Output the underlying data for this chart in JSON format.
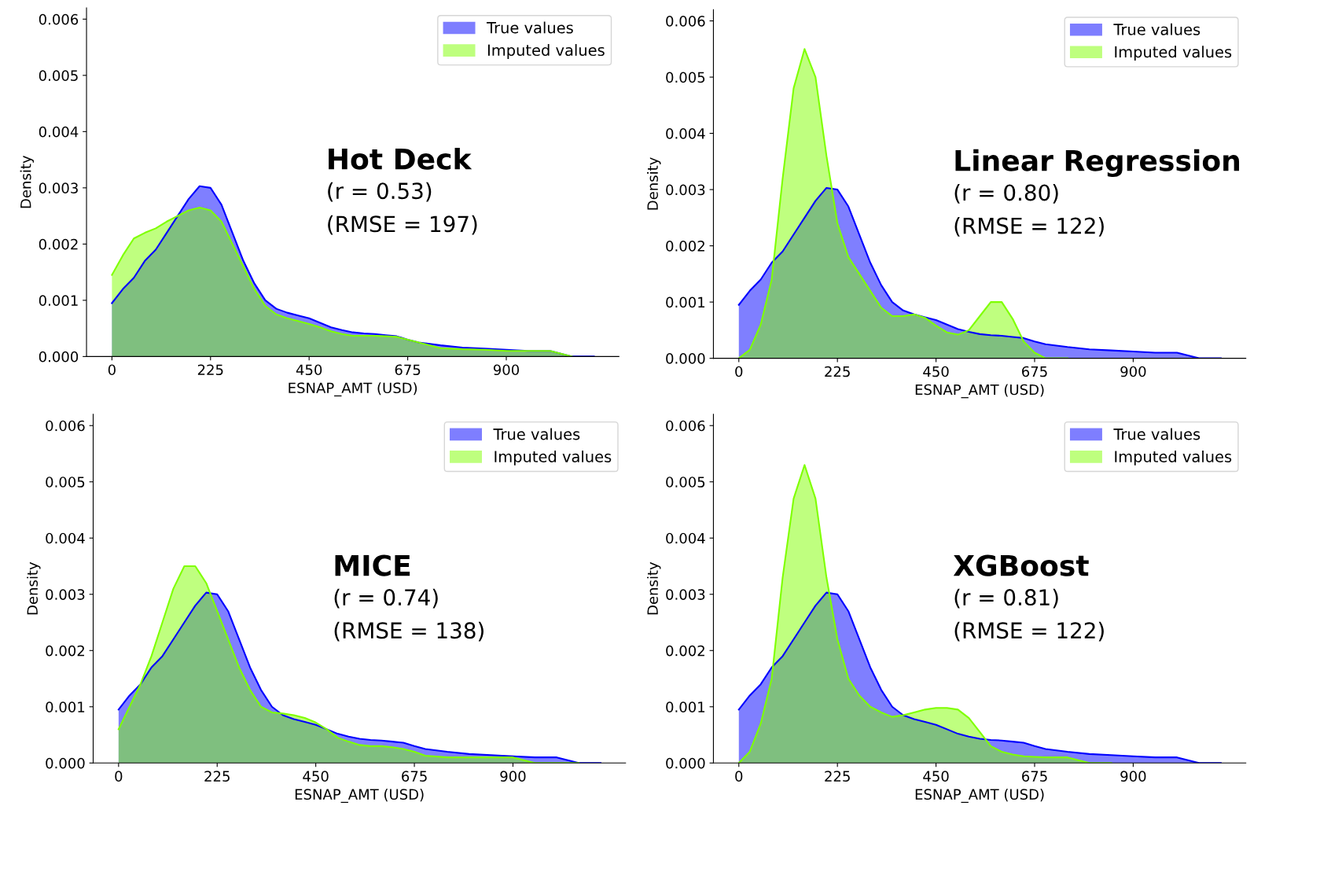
{
  "chart_data": [
    {
      "type": "area",
      "xlabel": "ESNAP_AMT (USD)",
      "ylabel": "Density",
      "annotations": [
        "Hot Deck",
        "(r = 0.53)",
        "(RMSE = 197)"
      ],
      "x": [
        0,
        25,
        50,
        75,
        100,
        125,
        150,
        175,
        200,
        225,
        250,
        275,
        300,
        325,
        350,
        375,
        400,
        425,
        450,
        475,
        500,
        525,
        550,
        575,
        600,
        625,
        650,
        675,
        700,
        750,
        800,
        850,
        900,
        950,
        1000,
        1050,
        1100
      ],
      "series": [
        {
          "name": "True values",
          "color": "#0000ff",
          "values": [
            0.00095,
            0.0012,
            0.0014,
            0.0017,
            0.0019,
            0.0022,
            0.0025,
            0.0028,
            0.00303,
            0.003,
            0.0027,
            0.0022,
            0.0017,
            0.0013,
            0.001,
            0.00085,
            0.00078,
            0.00073,
            0.00068,
            0.0006,
            0.00052,
            0.00047,
            0.00043,
            0.00041,
            0.0004,
            0.00038,
            0.00036,
            0.0003,
            0.00025,
            0.0002,
            0.00016,
            0.00014,
            0.00012,
            0.0001,
            0.0001,
            0.0,
            0.0
          ]
        },
        {
          "name": "Imputed values",
          "color": "#7fff00",
          "values": [
            0.00145,
            0.0018,
            0.0021,
            0.0022,
            0.00228,
            0.0024,
            0.0025,
            0.0026,
            0.00265,
            0.0026,
            0.0024,
            0.002,
            0.0016,
            0.0012,
            0.0009,
            0.00075,
            0.00068,
            0.00063,
            0.00058,
            0.00052,
            0.00045,
            0.0004,
            0.00037,
            0.00037,
            0.00037,
            0.00036,
            0.00035,
            0.0003,
            0.00025,
            0.00015,
            0.00013,
            0.00012,
            0.0001,
            0.0001,
            0.0001,
            0.0,
            null
          ]
        }
      ],
      "xlim": [
        -58,
        1157
      ],
      "ylim": [
        0,
        0.0062
      ],
      "xticks": [
        0,
        225,
        450,
        675,
        900
      ],
      "yticks": [
        {
          "value": 0.0,
          "label": "0.000"
        },
        {
          "value": 0.001,
          "label": "0.001"
        },
        {
          "value": 0.002,
          "label": "0.002"
        },
        {
          "value": 0.003,
          "label": "0.003"
        },
        {
          "value": 0.004,
          "label": "0.004"
        },
        {
          "value": 0.005,
          "label": "0.005"
        },
        {
          "value": 0.006,
          "label": "0.006"
        }
      ],
      "grid": false,
      "legend": "top right"
    },
    {
      "type": "area",
      "xlabel": "ESNAP_AMT (USD)",
      "ylabel": "Density",
      "annotations": [
        "Linear Regression",
        "(r = 0.80)",
        "(RMSE = 122)"
      ],
      "x": [
        0,
        25,
        50,
        75,
        100,
        125,
        150,
        175,
        200,
        225,
        250,
        275,
        300,
        325,
        350,
        375,
        400,
        425,
        450,
        475,
        500,
        525,
        550,
        575,
        600,
        625,
        650,
        675,
        700,
        750,
        800,
        850,
        900,
        950,
        1000,
        1050,
        1100
      ],
      "series": [
        {
          "name": "True values",
          "color": "#0000ff",
          "values": [
            0.00095,
            0.0012,
            0.0014,
            0.0017,
            0.0019,
            0.0022,
            0.0025,
            0.0028,
            0.00303,
            0.003,
            0.0027,
            0.0022,
            0.0017,
            0.0013,
            0.001,
            0.00085,
            0.00078,
            0.00073,
            0.00068,
            0.0006,
            0.00052,
            0.00047,
            0.00043,
            0.00041,
            0.0004,
            0.00038,
            0.00036,
            0.0003,
            0.00025,
            0.0002,
            0.00016,
            0.00014,
            0.00012,
            0.0001,
            0.0001,
            0.0,
            0.0
          ]
        },
        {
          "name": "Imputed values",
          "color": "#7fff00",
          "values": [
            0.0,
            0.00015,
            0.0006,
            0.0014,
            0.0032,
            0.0048,
            0.0055,
            0.005,
            0.0036,
            0.0024,
            0.0018,
            0.0015,
            0.0012,
            0.0009,
            0.00075,
            0.00075,
            0.00078,
            0.00072,
            0.00058,
            0.00046,
            0.00042,
            0.0005,
            0.00075,
            0.001,
            0.001,
            0.0007,
            0.0003,
            0.0001,
            0.0,
            0.0,
            null,
            null,
            null,
            null,
            null,
            null,
            null
          ]
        }
      ],
      "xlim": [
        -58,
        1157
      ],
      "ylim": [
        0,
        0.0062
      ],
      "xticks": [
        0,
        225,
        450,
        675,
        900
      ],
      "yticks": [
        {
          "value": 0.0,
          "label": "0.000"
        },
        {
          "value": 0.001,
          "label": "0.001"
        },
        {
          "value": 0.002,
          "label": "0.002"
        },
        {
          "value": 0.003,
          "label": "0.003"
        },
        {
          "value": 0.004,
          "label": "0.004"
        },
        {
          "value": 0.005,
          "label": "0.005"
        },
        {
          "value": 0.006,
          "label": "0.006"
        }
      ],
      "grid": false,
      "legend": "top right"
    },
    {
      "type": "area",
      "xlabel": "ESNAP_AMT (USD)",
      "ylabel": "Density",
      "annotations": [
        "MICE",
        "(r = 0.74)",
        "(RMSE = 138)"
      ],
      "x": [
        0,
        25,
        50,
        75,
        100,
        125,
        150,
        175,
        200,
        225,
        250,
        275,
        300,
        325,
        350,
        375,
        400,
        425,
        450,
        475,
        500,
        525,
        550,
        575,
        600,
        625,
        650,
        675,
        700,
        750,
        800,
        850,
        900,
        950,
        1000,
        1050,
        1100
      ],
      "series": [
        {
          "name": "True values",
          "color": "#0000ff",
          "values": [
            0.00095,
            0.0012,
            0.0014,
            0.0017,
            0.0019,
            0.0022,
            0.0025,
            0.0028,
            0.00303,
            0.003,
            0.0027,
            0.0022,
            0.0017,
            0.0013,
            0.001,
            0.00085,
            0.00078,
            0.00073,
            0.00068,
            0.0006,
            0.00052,
            0.00047,
            0.00043,
            0.00041,
            0.0004,
            0.00038,
            0.00036,
            0.0003,
            0.00025,
            0.0002,
            0.00016,
            0.00014,
            0.00012,
            0.0001,
            0.0001,
            0.0,
            0.0
          ]
        },
        {
          "name": "Imputed values",
          "color": "#7fff00",
          "values": [
            0.0006,
            0.001,
            0.0014,
            0.0019,
            0.0025,
            0.0031,
            0.0035,
            0.0035,
            0.0032,
            0.0027,
            0.0022,
            0.0017,
            0.0013,
            0.001,
            0.0009,
            0.00088,
            0.00085,
            0.0008,
            0.00072,
            0.0006,
            0.00045,
            0.00038,
            0.00032,
            0.0003,
            0.0003,
            0.00028,
            0.00025,
            0.0002,
            0.00013,
            0.0001,
            0.0001,
            0.0001,
            0.0001,
            0.0,
            0.0,
            0.0,
            null
          ]
        }
      ],
      "xlim": [
        -58,
        1157
      ],
      "ylim": [
        0,
        0.0062
      ],
      "xticks": [
        0,
        225,
        450,
        675,
        900
      ],
      "yticks": [
        {
          "value": 0.0,
          "label": "0.000"
        },
        {
          "value": 0.001,
          "label": "0.001"
        },
        {
          "value": 0.002,
          "label": "0.002"
        },
        {
          "value": 0.003,
          "label": "0.003"
        },
        {
          "value": 0.004,
          "label": "0.004"
        },
        {
          "value": 0.005,
          "label": "0.005"
        },
        {
          "value": 0.006,
          "label": "0.006"
        }
      ],
      "grid": false,
      "legend": "top right"
    },
    {
      "type": "area",
      "xlabel": "ESNAP_AMT (USD)",
      "ylabel": "Density",
      "annotations": [
        "XGBoost",
        "(r = 0.81)",
        "(RMSE = 122)"
      ],
      "x": [
        0,
        25,
        50,
        75,
        100,
        125,
        150,
        175,
        200,
        225,
        250,
        275,
        300,
        325,
        350,
        375,
        400,
        425,
        450,
        475,
        500,
        525,
        550,
        575,
        600,
        625,
        650,
        675,
        700,
        750,
        800,
        850,
        900,
        950,
        1000,
        1050,
        1100
      ],
      "series": [
        {
          "name": "True values",
          "color": "#0000ff",
          "values": [
            0.00095,
            0.0012,
            0.0014,
            0.0017,
            0.0019,
            0.0022,
            0.0025,
            0.0028,
            0.00303,
            0.003,
            0.0027,
            0.0022,
            0.0017,
            0.0013,
            0.001,
            0.00085,
            0.00078,
            0.00073,
            0.00068,
            0.0006,
            0.00052,
            0.00047,
            0.00043,
            0.00041,
            0.0004,
            0.00038,
            0.00036,
            0.0003,
            0.00025,
            0.0002,
            0.00016,
            0.00014,
            0.00012,
            0.0001,
            0.0001,
            0.0,
            0.0
          ]
        },
        {
          "name": "Imputed values",
          "color": "#7fff00",
          "values": [
            0.0,
            0.0002,
            0.0007,
            0.0015,
            0.0033,
            0.0047,
            0.0053,
            0.0047,
            0.0033,
            0.0022,
            0.0015,
            0.0012,
            0.001,
            0.0009,
            0.00082,
            0.00085,
            0.0009,
            0.00095,
            0.00098,
            0.00098,
            0.00095,
            0.0008,
            0.00055,
            0.0003,
            0.0002,
            0.00015,
            0.00012,
            0.00011,
            0.0001,
            0.0001,
            0.0,
            0.0,
            null,
            null,
            null,
            null,
            null
          ]
        }
      ],
      "xlim": [
        -58,
        1157
      ],
      "ylim": [
        0,
        0.0062
      ],
      "xticks": [
        0,
        225,
        450,
        675,
        900
      ],
      "yticks": [
        {
          "value": 0.0,
          "label": "0.000"
        },
        {
          "value": 0.001,
          "label": "0.001"
        },
        {
          "value": 0.002,
          "label": "0.002"
        },
        {
          "value": 0.003,
          "label": "0.003"
        },
        {
          "value": 0.004,
          "label": "0.004"
        },
        {
          "value": 0.005,
          "label": "0.005"
        },
        {
          "value": 0.006,
          "label": "0.006"
        }
      ],
      "grid": false,
      "legend": "top right"
    }
  ]
}
